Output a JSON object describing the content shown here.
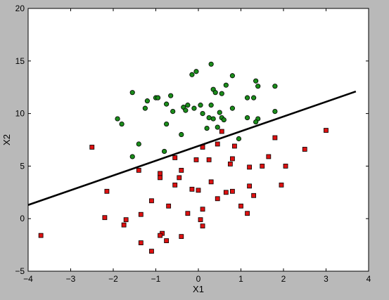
{
  "chart_data": {
    "type": "scatter",
    "title": "",
    "xlabel": "X1",
    "ylabel": "X2",
    "xlim": [
      -4,
      4
    ],
    "ylim": [
      -5,
      20
    ],
    "x_ticks": [
      -4,
      -3,
      -2,
      -1,
      0,
      1,
      2,
      3,
      4
    ],
    "y_ticks": [
      -5,
      0,
      5,
      10,
      15,
      20
    ],
    "grid": false,
    "legend": "none",
    "series": [
      {
        "marker": "circle",
        "color": "#1a8c1a",
        "points": [
          [
            0.3,
            14.7
          ],
          [
            -0.15,
            13.7
          ],
          [
            -0.05,
            14.0
          ],
          [
            0.8,
            13.6
          ],
          [
            1.35,
            13.1
          ],
          [
            1.4,
            12.6
          ],
          [
            1.8,
            12.6
          ],
          [
            0.65,
            12.7
          ],
          [
            0.35,
            12.3
          ],
          [
            0.4,
            12.0
          ],
          [
            0.55,
            11.9
          ],
          [
            -1.55,
            12.0
          ],
          [
            -0.65,
            11.7
          ],
          [
            -1.0,
            11.5
          ],
          [
            -0.95,
            11.5
          ],
          [
            -1.2,
            11.2
          ],
          [
            1.15,
            11.5
          ],
          [
            1.3,
            11.5
          ],
          [
            -0.75,
            10.9
          ],
          [
            -0.25,
            10.8
          ],
          [
            0.3,
            10.8
          ],
          [
            0.05,
            10.8
          ],
          [
            0.8,
            10.5
          ],
          [
            -0.35,
            10.6
          ],
          [
            -1.25,
            10.5
          ],
          [
            -0.1,
            10.5
          ],
          [
            -0.6,
            10.2
          ],
          [
            -0.3,
            10.3
          ],
          [
            1.8,
            10.2
          ],
          [
            0.5,
            10.1
          ],
          [
            0.1,
            10.0
          ],
          [
            0.25,
            9.6
          ],
          [
            0.55,
            9.6
          ],
          [
            0.35,
            9.5
          ],
          [
            0.6,
            9.4
          ],
          [
            1.15,
            9.6
          ],
          [
            1.4,
            9.5
          ],
          [
            -1.9,
            9.5
          ],
          [
            1.35,
            9.2
          ],
          [
            -0.75,
            9.0
          ],
          [
            -1.8,
            9.0
          ],
          [
            0.45,
            8.7
          ],
          [
            0.2,
            8.6
          ],
          [
            -0.4,
            8.0
          ],
          [
            0.95,
            7.6
          ],
          [
            -1.4,
            7.1
          ],
          [
            -0.8,
            6.4
          ],
          [
            -1.55,
            5.9
          ]
        ]
      },
      {
        "marker": "square",
        "color": "#dd1111",
        "points": [
          [
            3.0,
            8.4
          ],
          [
            0.55,
            8.3
          ],
          [
            1.8,
            7.7
          ],
          [
            0.45,
            7.1
          ],
          [
            -2.5,
            6.8
          ],
          [
            0.1,
            6.8
          ],
          [
            0.85,
            6.9
          ],
          [
            2.5,
            6.6
          ],
          [
            1.65,
            5.9
          ],
          [
            -0.55,
            5.8
          ],
          [
            0.8,
            5.7
          ],
          [
            0.25,
            5.6
          ],
          [
            -0.05,
            5.6
          ],
          [
            0.75,
            5.2
          ],
          [
            1.5,
            5.0
          ],
          [
            2.05,
            5.0
          ],
          [
            1.2,
            4.9
          ],
          [
            -1.4,
            4.6
          ],
          [
            -0.4,
            4.6
          ],
          [
            -0.9,
            4.3
          ],
          [
            -0.9,
            3.9
          ],
          [
            -0.45,
            3.9
          ],
          [
            0.3,
            3.5
          ],
          [
            -0.55,
            3.2
          ],
          [
            1.2,
            3.1
          ],
          [
            1.95,
            3.2
          ],
          [
            -0.15,
            2.8
          ],
          [
            0.0,
            2.7
          ],
          [
            0.8,
            2.6
          ],
          [
            0.65,
            2.5
          ],
          [
            -2.15,
            2.6
          ],
          [
            1.3,
            2.2
          ],
          [
            0.45,
            1.9
          ],
          [
            -1.1,
            1.7
          ],
          [
            -0.7,
            1.2
          ],
          [
            0.1,
            0.9
          ],
          [
            1.0,
            1.2
          ],
          [
            -0.25,
            0.5
          ],
          [
            -1.35,
            0.4
          ],
          [
            1.15,
            0.5
          ],
          [
            -2.2,
            0.1
          ],
          [
            -1.7,
            -0.1
          ],
          [
            0.05,
            -0.1
          ],
          [
            -1.75,
            -0.6
          ],
          [
            0.1,
            -0.7
          ],
          [
            -0.85,
            -1.4
          ],
          [
            -0.9,
            -1.6
          ],
          [
            -0.4,
            -1.7
          ],
          [
            -3.7,
            -1.6
          ],
          [
            -0.75,
            -2.1
          ],
          [
            -1.35,
            -2.3
          ],
          [
            -1.1,
            -3.1
          ]
        ]
      }
    ],
    "line": {
      "color": "#000000",
      "points": [
        [
          -4.0,
          1.3
        ],
        [
          3.7,
          12.1
        ]
      ]
    }
  }
}
